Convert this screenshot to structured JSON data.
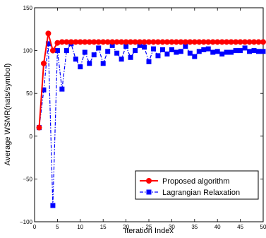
{
  "chart_data": {
    "type": "line",
    "title": "",
    "xlabel": "Iteration Index",
    "ylabel": "Average WSMR(nats/symbol)",
    "xlim": [
      0,
      50
    ],
    "ylim": [
      -100,
      150
    ],
    "xticks": [
      0,
      5,
      10,
      15,
      20,
      25,
      30,
      35,
      40,
      45,
      50
    ],
    "yticks": [
      -100,
      -50,
      0,
      50,
      100,
      150
    ],
    "xtick_labels": [
      "0",
      "5",
      "10",
      "15",
      "20",
      "25",
      "30",
      "35",
      "40",
      "45",
      "50"
    ],
    "ytick_labels": [
      "−100",
      "−50",
      "0",
      "50",
      "100",
      "150"
    ],
    "grid": false,
    "legend_position": "lower-right",
    "series": [
      {
        "name": "Proposed algorithm",
        "color": "#ff0000",
        "line_style": "solid",
        "marker": "circle",
        "x": [
          1,
          2,
          3,
          4,
          5,
          6,
          7,
          8,
          9,
          10,
          11,
          12,
          13,
          14,
          15,
          16,
          17,
          18,
          19,
          20,
          21,
          22,
          23,
          24,
          25,
          26,
          27,
          28,
          29,
          30,
          31,
          32,
          33,
          34,
          35,
          36,
          37,
          38,
          39,
          40,
          41,
          42,
          43,
          44,
          45,
          46,
          47,
          48,
          49,
          50
        ],
        "y": [
          10,
          85,
          120,
          100,
          109,
          110,
          110,
          110,
          110,
          110,
          110,
          110,
          110,
          110,
          110,
          110,
          110,
          110,
          110,
          110,
          110,
          110,
          110,
          110,
          110,
          110,
          110,
          110,
          110,
          110,
          110,
          110,
          110,
          110,
          110,
          110,
          110,
          110,
          110,
          110,
          110,
          110,
          110,
          110,
          110,
          110,
          110,
          110,
          110,
          110
        ]
      },
      {
        "name": "Lagrangian Relaxation",
        "color": "#0000ff",
        "line_style": "dashdot",
        "marker": "square",
        "x": [
          1,
          2,
          3,
          4,
          5,
          6,
          7,
          8,
          9,
          10,
          11,
          12,
          13,
          14,
          15,
          16,
          17,
          18,
          19,
          20,
          21,
          22,
          23,
          24,
          25,
          26,
          27,
          28,
          29,
          30,
          31,
          32,
          33,
          34,
          35,
          36,
          37,
          38,
          39,
          40,
          41,
          42,
          43,
          44,
          45,
          46,
          47,
          48,
          49,
          50
        ],
        "y": [
          10,
          54,
          108,
          -81,
          100,
          55,
          100,
          108,
          90,
          81,
          98,
          85,
          95,
          103,
          85,
          99,
          106,
          97,
          90,
          105,
          92,
          100,
          106,
          104,
          87,
          102,
          94,
          101,
          96,
          101,
          98,
          99,
          105,
          97,
          93,
          99,
          101,
          102,
          98,
          99,
          96,
          98,
          98,
          100,
          100,
          103,
          99,
          100,
          99,
          99
        ]
      }
    ]
  }
}
